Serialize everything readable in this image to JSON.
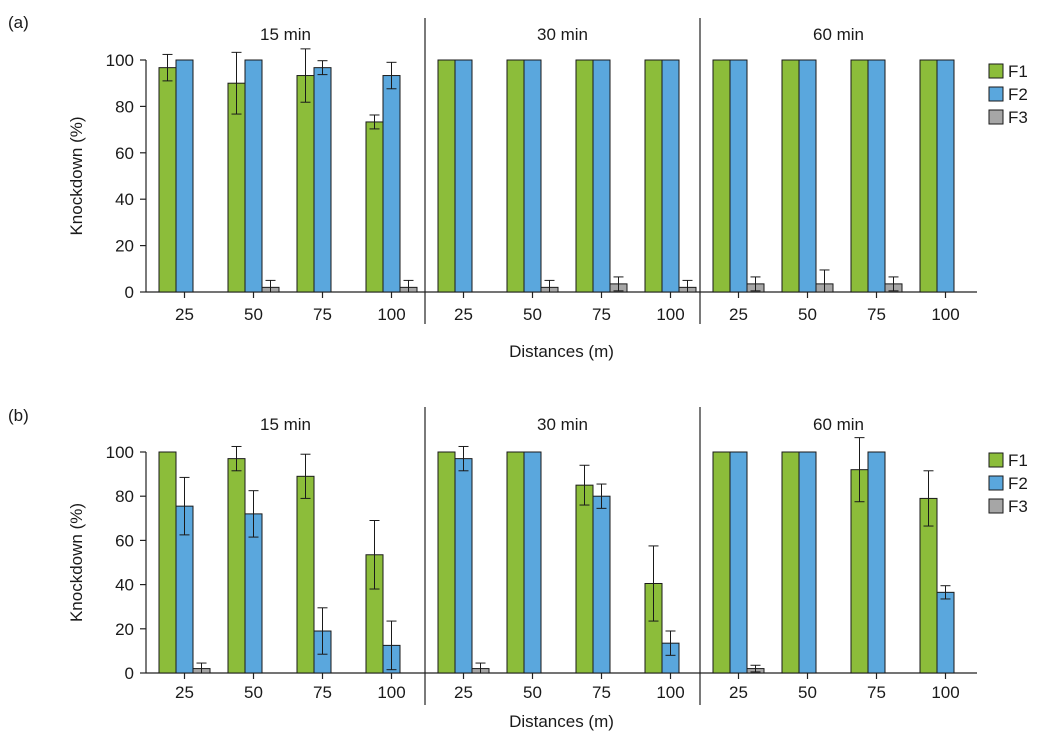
{
  "chart_data": [
    {
      "type": "bar",
      "panel_label": "(a)",
      "xlabel": "Distances (m)",
      "ylabel": "Knockdown (%)",
      "ylim": [
        0,
        100
      ],
      "yticks": [
        0,
        20,
        40,
        60,
        80,
        100
      ],
      "grid": false,
      "legend": "right",
      "groups": [
        "15 min",
        "30 min",
        "60 min"
      ],
      "categories": [
        "25",
        "50",
        "75",
        "100"
      ],
      "series": [
        {
          "name": "F1",
          "color": "#8cbd3a",
          "values": [
            [
              96.7,
              90,
              93.3,
              73.3
            ],
            [
              100,
              100,
              100,
              100
            ],
            [
              100,
              100,
              100,
              100
            ]
          ],
          "errors": [
            [
              5.7,
              13.3,
              11.5,
              3
            ],
            [
              null,
              null,
              null,
              null
            ],
            [
              null,
              null,
              null,
              null
            ]
          ]
        },
        {
          "name": "F2",
          "color": "#5aa7dd",
          "values": [
            [
              100,
              100,
              96.7,
              93.3
            ],
            [
              100,
              100,
              100,
              100
            ],
            [
              100,
              100,
              100,
              100
            ]
          ],
          "errors": [
            [
              null,
              null,
              3,
              5.7
            ],
            [
              null,
              null,
              null,
              null
            ],
            [
              null,
              null,
              null,
              null
            ]
          ]
        },
        {
          "name": "F3",
          "color": "#a6a6a6",
          "values": [
            [
              0,
              2,
              0,
              2
            ],
            [
              0,
              2,
              3.5,
              2
            ],
            [
              3.5,
              3.5,
              3.5,
              0
            ]
          ],
          "errors": [
            [
              null,
              3,
              null,
              3
            ],
            [
              null,
              3,
              3,
              3
            ],
            [
              3,
              6,
              3,
              null
            ]
          ]
        }
      ]
    },
    {
      "type": "bar",
      "panel_label": "(b)",
      "xlabel": "Distances (m)",
      "ylabel": "Knockdown (%)",
      "ylim": [
        0,
        100
      ],
      "yticks": [
        0,
        20,
        40,
        60,
        80,
        100
      ],
      "grid": false,
      "legend": "right",
      "groups": [
        "15 min",
        "30 min",
        "60 min"
      ],
      "categories": [
        "25",
        "50",
        "75",
        "100"
      ],
      "series": [
        {
          "name": "F1",
          "color": "#8cbd3a",
          "values": [
            [
              100,
              97,
              89,
              53.5
            ],
            [
              100,
              100,
              85,
              40.5
            ],
            [
              100,
              100,
              92,
              79
            ]
          ],
          "errors": [
            [
              null,
              5.5,
              10,
              15.5
            ],
            [
              null,
              null,
              9,
              17
            ],
            [
              null,
              null,
              14.5,
              12.5
            ]
          ]
        },
        {
          "name": "F2",
          "color": "#5aa7dd",
          "values": [
            [
              75.5,
              72,
              19,
              12.5
            ],
            [
              97,
              100,
              80,
              13.5
            ],
            [
              100,
              100,
              100,
              36.5
            ]
          ],
          "errors": [
            [
              13,
              10.5,
              10.5,
              11
            ],
            [
              5.5,
              null,
              5.5,
              5.5
            ],
            [
              null,
              null,
              null,
              3
            ]
          ]
        },
        {
          "name": "F3",
          "color": "#a6a6a6",
          "values": [
            [
              2,
              0,
              0,
              0
            ],
            [
              2,
              0,
              0,
              0
            ],
            [
              2,
              0,
              0,
              0
            ]
          ],
          "errors": [
            [
              2.5,
              null,
              null,
              null
            ],
            [
              2.5,
              null,
              null,
              null
            ],
            [
              1.5,
              null,
              null,
              null
            ]
          ]
        }
      ]
    }
  ]
}
